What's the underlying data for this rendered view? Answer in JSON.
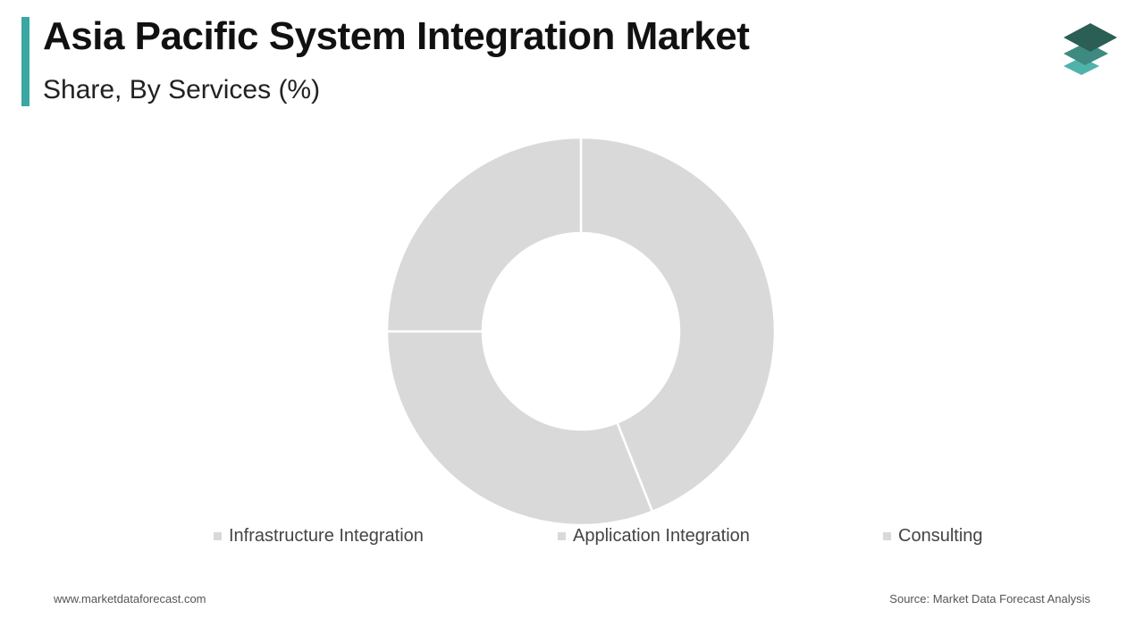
{
  "header": {
    "title": "Asia Pacific System Integration Market",
    "subtitle": "Share, By Services (%)"
  },
  "colors": {
    "accent": "#3aa7a3",
    "slice": "#d9d9d9",
    "separator": "#ffffff",
    "logo_dark": "#2b5e55",
    "logo_mid": "#3f8a80",
    "logo_light": "#4fb3ab"
  },
  "logo": {
    "icon": "stacked-layers-icon"
  },
  "chart_data": {
    "type": "pie",
    "donut": true,
    "categories": [
      "Infrastructure Integration",
      "Application Integration",
      "Consulting"
    ],
    "values": [
      44,
      31,
      25
    ],
    "legend_position": "bottom",
    "data_labels": false
  },
  "footer": {
    "website": "www.marketdataforecast.com",
    "source": "Source: Market Data Forecast Analysis"
  }
}
